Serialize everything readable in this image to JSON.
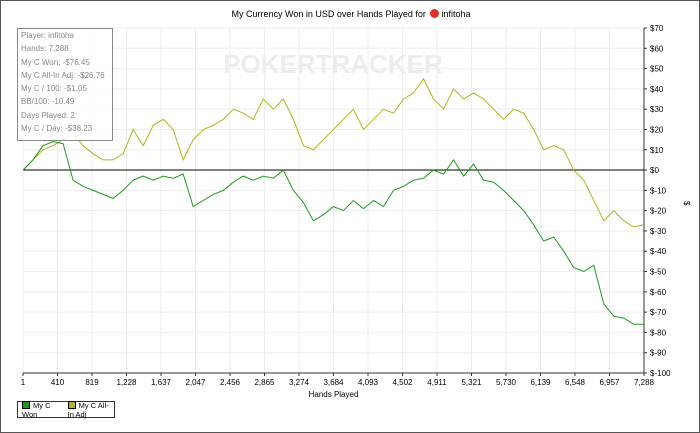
{
  "title": "My Currency Won in USD over Hands Played for",
  "player_name": "infitoha",
  "watermark": "POKERTRACKER",
  "info": [
    "Player: infitoha",
    "Hands: 7,288",
    "My C Won: -$76.45",
    "My C All-In Adj: -$26.76",
    "My C / 100: -$1.05",
    "BB/100: -10.49",
    "Days Played: 2",
    "My C / Day: -$38.23"
  ],
  "chart_data": {
    "type": "line",
    "title": "My Currency Won in USD over Hands Played for infitoha",
    "xlabel": "Hands Played",
    "ylabel": "$",
    "xlim": [
      1,
      7288
    ],
    "ylim": [
      -100,
      70
    ],
    "x_ticks": [
      "1",
      "410",
      "819",
      "1,228",
      "1,637",
      "2,047",
      "2,456",
      "2,865",
      "3,274",
      "3,684",
      "4,093",
      "4,502",
      "4,911",
      "5,321",
      "5,730",
      "6,139",
      "6,548",
      "6,957",
      "7,288"
    ],
    "y_ticks": [
      70,
      60,
      50,
      40,
      30,
      20,
      10,
      0,
      -10,
      -20,
      -30,
      -40,
      -50,
      -60,
      -70,
      -80,
      -90,
      -100
    ],
    "y_tick_labels": [
      "$70",
      "$60",
      "$50",
      "$40",
      "$30",
      "$20",
      "$10",
      "$0",
      "$-10",
      "$-20",
      "$-30",
      "$-40",
      "$-50",
      "$-60",
      "$-70",
      "$-80",
      "$-90",
      "$-100"
    ],
    "grid": true,
    "legend": "bottom-left",
    "x_start": 1,
    "x_step": 117.5,
    "series": [
      {
        "name": "My C Won",
        "color": "#1f9a1f",
        "values": [
          0,
          5,
          12,
          14,
          13,
          -5,
          -8,
          -10,
          -12,
          -14,
          -10,
          -5,
          -3,
          -5,
          -3,
          -4,
          -2,
          -18,
          -15,
          -12,
          -10,
          -6,
          -3,
          -5,
          -3,
          -4,
          0,
          -10,
          -16,
          -25,
          -22,
          -18,
          -20,
          -15,
          -19,
          -15,
          -18,
          -10,
          -8,
          -5,
          -4,
          0,
          -2,
          5,
          -3,
          3,
          -5,
          -6,
          -10,
          -15,
          -20,
          -27,
          -35,
          -33,
          -40,
          -48,
          -50,
          -47,
          -66,
          -72,
          -73,
          -76,
          -76
        ]
      },
      {
        "name": "My C All-In Adj",
        "color": "#b5b31e",
        "values": [
          0,
          5,
          10,
          12,
          15,
          18,
          12,
          8,
          5,
          5,
          8,
          20,
          12,
          22,
          25,
          20,
          5,
          15,
          20,
          22,
          25,
          30,
          28,
          25,
          35,
          30,
          35,
          25,
          12,
          10,
          15,
          20,
          25,
          30,
          20,
          25,
          30,
          28,
          35,
          38,
          45,
          35,
          30,
          40,
          35,
          38,
          35,
          30,
          25,
          30,
          28,
          20,
          10,
          12,
          10,
          0,
          -5,
          -15,
          -25,
          -20,
          -25,
          -28,
          -27
        ]
      }
    ]
  }
}
